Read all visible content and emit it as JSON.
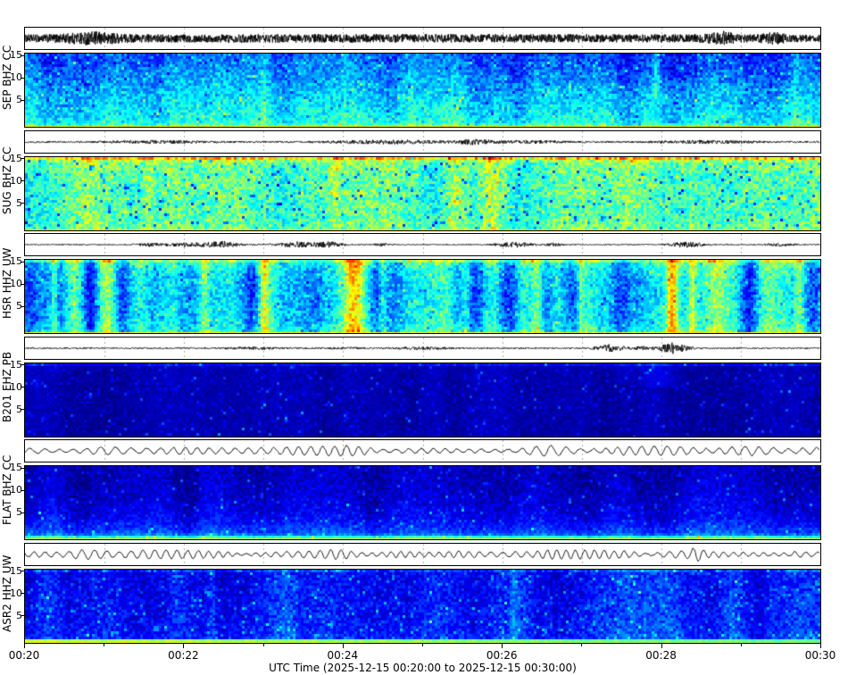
{
  "figure": {
    "background": "#ffffff",
    "kind": "multichannel seismic waveform + spectrogram display"
  },
  "chart_data": {
    "type": "heatmap",
    "subtype": "seismic-spectrograms-with-traces",
    "title": "",
    "xlabel": "UTC Time (2025-12-15 00:20:00 to 2025-12-15 00:30:00)",
    "time_start": "2025-12-15 00:20:00",
    "time_end": "2025-12-15 00:30:00",
    "x_ticks": [
      "00:20",
      "00:22",
      "00:24",
      "00:26",
      "00:28",
      "00:30"
    ],
    "x_tick_minutes": [
      0,
      2,
      4,
      6,
      8,
      10
    ],
    "minor_grid_every_minutes": 1,
    "freq_ticks": [
      "15",
      "10",
      "5"
    ],
    "freq_tick_values": [
      15,
      10,
      5
    ],
    "colormap": "jet",
    "colors": {
      "trace": "#000000",
      "grid": "#a8a8a8",
      "axis": "#000000",
      "spec_low": "#000080",
      "spec_mid": "#00e0e0",
      "spec_high": "#ffd000"
    },
    "channels": [
      {
        "label": "SEP BHZ CC",
        "station": "SEP",
        "channel": "BHZ",
        "network": "CC",
        "description": "Continuous moderate-amplitude noisy trace; cyan spectrogram, bluer in upper frequencies, green-yellow speckle near low frequencies, thin yellow line at bottom, faint bright streak near 00:28.",
        "waveform": {
          "type": "noise",
          "amp": 4.2,
          "density": 3,
          "bursts": [
            {
              "c": 0.085,
              "w": 0.025,
              "g": 0.8
            },
            {
              "c": 0.5,
              "w": 0.3,
              "g": 0.15
            },
            {
              "c": 0.875,
              "w": 0.012,
              "g": 1.0
            },
            {
              "c": 0.94,
              "w": 0.01,
              "g": 0.7
            }
          ]
        },
        "spectrogram": {
          "profile": [
            [
              0,
              0.22
            ],
            [
              0.35,
              0.28
            ],
            [
              0.7,
              0.35
            ],
            [
              1,
              0.4
            ]
          ],
          "sigma": 0.055,
          "colA": 0.03,
          "colL": 8,
          "speckles": [
            {
              "p": 0.05,
              "add": -0.1
            },
            {
              "p": 0.05,
              "add": 0.08
            },
            {
              "p": 0.015,
              "add": 0.16
            }
          ],
          "bands": [
            {
              "from": "bottom",
              "rows": 2,
              "add": 0.05
            },
            {
              "from": "bottom",
              "rows": 1,
              "set": 0.63
            }
          ],
          "streaks": [
            {
              "x": 0.795,
              "w": 0.004,
              "add": 0.14,
              "t1": 0.6
            },
            {
              "x": 0.3,
              "w": 0.003,
              "add": 0.07
            },
            {
              "x": 0.78,
              "w": 0.12,
              "add": -0.045,
              "t1": 0.4
            },
            {
              "x": 0.97,
              "w": 0.003,
              "add": 0.06
            }
          ]
        }
      },
      {
        "label": "SUG BHZ CC",
        "station": "SUG",
        "channel": "BHZ",
        "network": "CC",
        "description": "Thin noisy trace with small bursts; bright green-cyan spectrogram with yellow band along top and yellow bottom line.",
        "waveform": {
          "type": "noise",
          "amp": 1.0,
          "density": 2,
          "bursts": [
            {
              "c": 0.17,
              "w": 0.04,
              "g": 1.2
            },
            {
              "c": 0.46,
              "w": 0.05,
              "g": 1.6
            },
            {
              "c": 0.565,
              "w": 0.015,
              "g": 2.2
            },
            {
              "c": 0.63,
              "w": 0.03,
              "g": 1.2
            },
            {
              "c": 0.86,
              "w": 0.04,
              "g": 1.2
            }
          ]
        },
        "spectrogram": {
          "profile": [
            [
              0,
              0.5
            ],
            [
              0.2,
              0.46
            ],
            [
              0.8,
              0.45
            ],
            [
              1,
              0.49
            ]
          ],
          "sigma": 0.075,
          "colA": 0.035,
          "colL": 8,
          "speckles": [
            {
              "p": 0.06,
              "add": -0.2
            },
            {
              "p": 0.05,
              "add": 0.09
            }
          ],
          "bands": [
            {
              "from": "top",
              "rows": 1,
              "add": 0.13
            },
            {
              "from": "top",
              "rows": 2,
              "add": 0.05
            },
            {
              "from": "bottom",
              "rows": 1,
              "set": 0.62
            }
          ],
          "streaks": [
            {
              "x": 0.155,
              "w": 0.005,
              "add": 0.08
            },
            {
              "x": 0.39,
              "w": 0.004,
              "add": 0.09
            },
            {
              "x": 0.585,
              "w": 0.007,
              "add": 0.1
            },
            {
              "x": 0.84,
              "w": 0.004,
              "add": 0.08
            }
          ]
        }
      },
      {
        "label": "HSR HHZ UW",
        "station": "HSR",
        "channel": "HHZ",
        "network": "UW",
        "description": "Quiet trace with several spiky event bursts; patchy blue/cyan spectrogram crossed by vertical yellow event streaks (strongest near 00:24.1, 00:26.4, 00:28.2) and yellow bottom line.",
        "waveform": {
          "type": "noise",
          "amp": 0.6,
          "density": 2,
          "bursts": [
            {
              "c": 0.155,
              "w": 0.01,
              "g": 2.5
            },
            {
              "c": 0.215,
              "w": 0.03,
              "g": 3.5
            },
            {
              "c": 0.25,
              "w": 0.012,
              "g": 4
            },
            {
              "c": 0.345,
              "w": 0.02,
              "g": 5
            },
            {
              "c": 0.385,
              "w": 0.01,
              "g": 5
            },
            {
              "c": 0.45,
              "w": 0.008,
              "g": 2
            },
            {
              "c": 0.615,
              "w": 0.015,
              "g": 4.5
            },
            {
              "c": 0.665,
              "w": 0.008,
              "g": 2.5
            },
            {
              "c": 0.83,
              "w": 0.015,
              "g": 4.5
            },
            {
              "c": 0.95,
              "w": 0.012,
              "g": 2.5
            }
          ]
        },
        "spectrogram": {
          "profile": [
            [
              0,
              0.42
            ],
            [
              0.15,
              0.36
            ],
            [
              0.5,
              0.33
            ],
            [
              0.85,
              0.36
            ],
            [
              1,
              0.42
            ]
          ],
          "sigma": 0.06,
          "colA": 0.1,
          "colL": 6,
          "speckles": [
            {
              "p": 0.05,
              "add": 0.1
            },
            {
              "p": 0.05,
              "add": -0.08
            }
          ],
          "bands": [
            {
              "from": "top",
              "rows": 1,
              "add": 0.1
            },
            {
              "from": "bottom",
              "rows": 1,
              "set": 0.64
            }
          ],
          "streaks": [
            {
              "x": 0.035,
              "w": 0.004,
              "add": 0.16
            },
            {
              "x": 0.225,
              "w": 0.004,
              "add": 0.18
            },
            {
              "x": 0.3,
              "w": 0.004,
              "add": 0.2
            },
            {
              "x": 0.415,
              "w": 0.008,
              "add": 0.26
            },
            {
              "x": 0.45,
              "w": 0.004,
              "add": 0.16
            },
            {
              "x": 0.555,
              "w": 0.003,
              "add": 0.12
            },
            {
              "x": 0.645,
              "w": 0.006,
              "add": 0.3
            },
            {
              "x": 0.7,
              "w": 0.003,
              "add": 0.14
            },
            {
              "x": 0.815,
              "w": 0.005,
              "add": 0.3
            },
            {
              "x": 0.84,
              "w": 0.003,
              "add": 0.16
            },
            {
              "x": 0.975,
              "w": 0.004,
              "add": 0.16
            }
          ]
        }
      },
      {
        "label": "B201 EHZ PB",
        "station": "B201",
        "channel": "EHZ",
        "network": "PB",
        "description": "Very quiet trace with two strong spiky bursts near 00:27.3 and 00:28.2; very dark navy spectrogram with sparse brighter blue speckles, slightly brighter along the top.",
        "waveform": {
          "type": "noise",
          "amp": 0.8,
          "density": 2,
          "bursts": [
            {
              "c": 0.29,
              "w": 0.025,
              "g": 1.2
            },
            {
              "c": 0.4,
              "w": 0.02,
              "g": 0.8
            },
            {
              "c": 0.5,
              "w": 0.025,
              "g": 1.5
            },
            {
              "c": 0.735,
              "w": 0.012,
              "g": 5
            },
            {
              "c": 0.775,
              "w": 0.01,
              "g": 2
            },
            {
              "c": 0.815,
              "w": 0.012,
              "g": 7
            }
          ]
        },
        "spectrogram": {
          "profile": [
            [
              0,
              0.05
            ],
            [
              0.15,
              0.045
            ],
            [
              1,
              0.04
            ]
          ],
          "sigma": 0.02,
          "colA": 0.012,
          "colL": 8,
          "speckles": [
            {
              "p": 0.07,
              "add": 0.07
            },
            {
              "p": 0.02,
              "add": 0.14
            }
          ],
          "bands": [
            {
              "from": "top",
              "rows": 1,
              "add": 0.08
            },
            {
              "from": "bottom",
              "rows": 1,
              "add": -0.02
            }
          ],
          "streaks": [
            {
              "x": 0.8,
              "w": 0.015,
              "add": 0.07,
              "t1": 0.3
            },
            {
              "x": 0.755,
              "w": 0.008,
              "add": 0.05,
              "t1": 0.25
            }
          ]
        }
      },
      {
        "label": "FLAT BHZ CC",
        "station": "FLAT",
        "channel": "BHZ",
        "network": "CC",
        "description": "Large smooth oscillatory (microseism-like) trace; dark navy spectrogram brightening toward low frequencies with a cyan band and thin yellow line at the bottom.",
        "waveform": {
          "type": "sine",
          "period": 14,
          "amp": 6.5,
          "amL": 45,
          "noise": 0.7,
          "spikes": []
        },
        "spectrogram": {
          "profile": [
            [
              0,
              0.05
            ],
            [
              0.4,
              0.07
            ],
            [
              0.7,
              0.11
            ],
            [
              0.88,
              0.18
            ],
            [
              1,
              0.32
            ]
          ],
          "sigma": 0.035,
          "colA": 0.02,
          "colL": 10,
          "speckles": [
            {
              "p": 0.05,
              "add": 0.08
            },
            {
              "p": 0.01,
              "add": 0.15
            }
          ],
          "bands": [
            {
              "from": "bottom",
              "rows": 2,
              "add": 0.12
            },
            {
              "from": "bottom",
              "rows": 1,
              "set": 0.62
            }
          ],
          "streaks": []
        }
      },
      {
        "label": "ASR2 HHZ UW",
        "station": "ASR2",
        "channel": "HHZ",
        "network": "UW",
        "description": "Regular oscillatory trace with one tall spike near 00:28.5; medium-blue speckled spectrogram with green-cyan strip along the bottom, yellower at the left.",
        "waveform": {
          "type": "sine",
          "period": 11,
          "amp": 5,
          "amL": 35,
          "noise": 0.6,
          "spikes": [
            {
              "c": 0.845,
              "w": 0.006,
              "g": 1.3
            },
            {
              "c": 0.97,
              "w": 0.005,
              "g": 0.5
            }
          ]
        },
        "spectrogram": {
          "profile": [
            [
              0,
              0.13
            ],
            [
              0.7,
              0.15
            ],
            [
              0.92,
              0.17
            ],
            [
              1,
              0.24
            ]
          ],
          "sigma": 0.045,
          "colA": 0.03,
          "colL": 8,
          "speckles": [
            {
              "p": 0.08,
              "add": 0.09
            },
            {
              "p": 0.02,
              "add": 0.16
            }
          ],
          "bands": [
            {
              "from": "top",
              "rows": 1,
              "add": 0.06
            },
            {
              "from": "bottom",
              "rows": 2,
              "set": 0.46,
              "xgrad": [
                0.1,
                0
              ]
            },
            {
              "from": "bottom",
              "rows": 1,
              "set": 0.5,
              "xgrad": [
                0.12,
                0
              ]
            }
          ],
          "streaks": [
            {
              "x": 0.235,
              "w": 0.003,
              "add": 0.09
            },
            {
              "x": 0.615,
              "w": 0.003,
              "add": 0.07
            }
          ]
        }
      }
    ]
  }
}
